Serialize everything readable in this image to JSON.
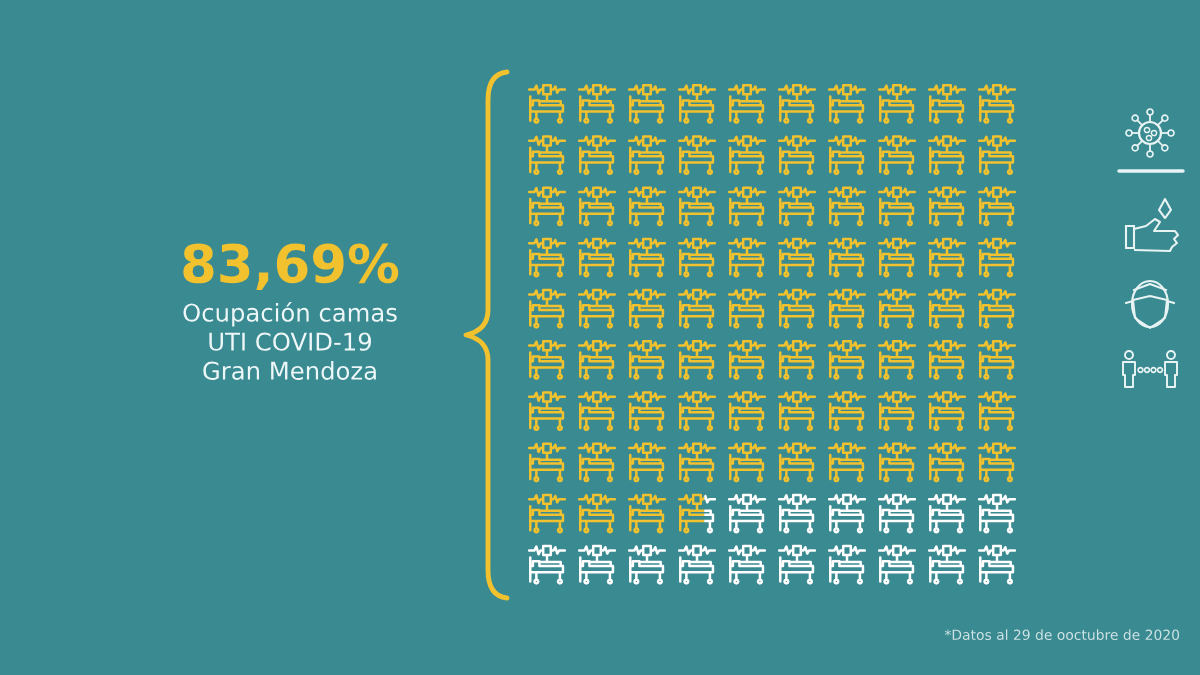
{
  "chart_data": {
    "type": "other",
    "values": [
      83.69
    ],
    "value_labels": [
      "83,69%"
    ],
    "color": "#f2c12e",
    "title": "Ocupación camas\nUTI COVID-19\nGran Mendoza",
    "annotations": [
      "*Datos al 29 de ooctubre de 2020"
    ]
  }
}
